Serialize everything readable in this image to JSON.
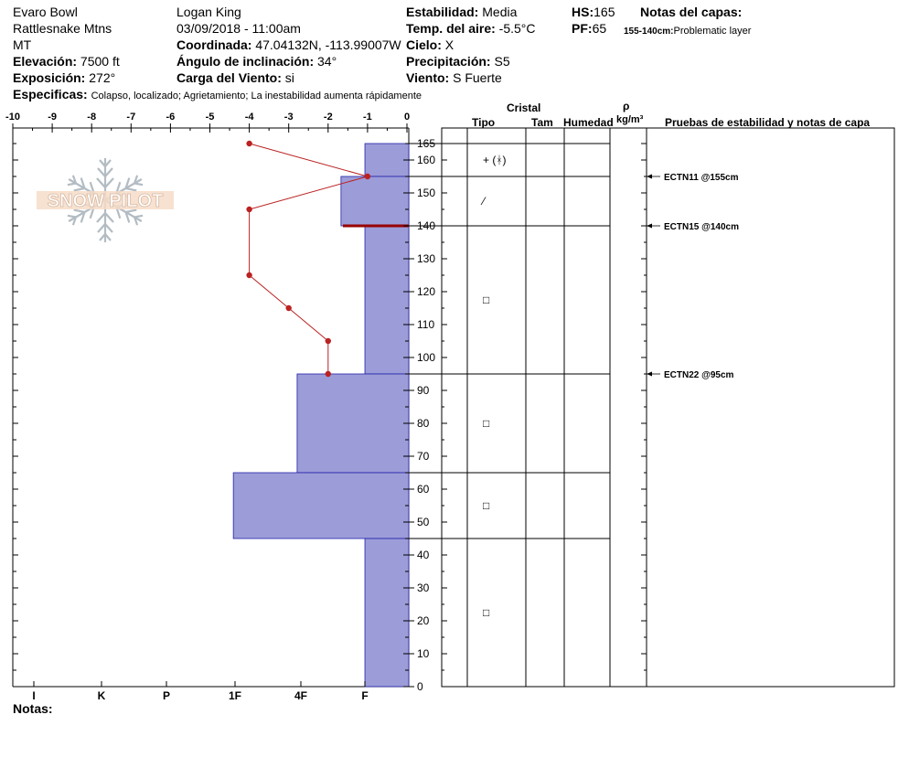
{
  "header": {
    "location": "Evaro Bowl",
    "range": "Rattlesnake Mtns",
    "state": "MT",
    "elevation_label": "Elevación:",
    "elevation_value": "7500 ft",
    "aspect_label": "Exposición:",
    "aspect_value": "272°",
    "specifics_label": "Especificas:",
    "specifics_value": "Colapso, localizado;  Agrietamiento;  La inestabilidad aumenta rápidamente",
    "observer": "Logan King",
    "datetime": "03/09/2018 - 11:00am",
    "coord_label": "Coordinada:",
    "coord_value": "47.04132N, -113.99007W",
    "slope_label": "Ángulo de inclinación:",
    "slope_value": "34°",
    "wind_loading_label": "Carga del Viento:",
    "wind_loading_value": "si",
    "stability_label": "Estabilidad:",
    "stability_value": "Media",
    "air_temp_label": "Temp. del aire:",
    "air_temp_value": "-5.5°C",
    "sky_label": "Cielo:",
    "sky_value": "X",
    "precip_label": "Precipitación:",
    "precip_value": "S5",
    "wind_label": "Viento:",
    "wind_value": "S Fuerte",
    "hs_label": "HS:",
    "hs_value": "165",
    "pf_label": "PF:",
    "pf_value": "65",
    "layer_notes_label": "Notas del capas:",
    "layer_note_range": "155-140cm:",
    "layer_note_text": "Problematic layer"
  },
  "logo": {
    "text": "SNOW PILOT"
  },
  "columns": {
    "crystal": "Cristal",
    "type": "Tipo",
    "size": "Tam",
    "moisture": "Humedad",
    "rho": "ρ",
    "density_unit": "kg/m³",
    "tests": "Pruebas de estabilidad y notas de capa"
  },
  "footer": {
    "notes_label": "Notas:"
  },
  "colors": {
    "hardness_fill": "#9c9cd8",
    "hardness_stroke": "#2222aa",
    "temperature": "#bb2222",
    "weak_layer": "#990000"
  },
  "chart_data": {
    "type": "snow_profile",
    "temperature_axis": {
      "min": -10,
      "max": 0,
      "ticks": [
        "-10",
        "-9",
        "-8",
        "-7",
        "-6",
        "-5",
        "-4",
        "-3",
        "-2",
        "-1",
        "0"
      ]
    },
    "depth_axis": {
      "min": 0,
      "max": 165,
      "ticks": [
        "0",
        "10",
        "20",
        "30",
        "40",
        "50",
        "60",
        "70",
        "80",
        "90",
        "100",
        "110",
        "120",
        "130",
        "140",
        "150",
        "160",
        "165"
      ]
    },
    "hardness_axis": [
      "I",
      "K",
      "P",
      "1F",
      "4F",
      "F"
    ],
    "temperature_profile": [
      {
        "t": -4,
        "h": 165
      },
      {
        "t": -1,
        "h": 155
      },
      {
        "t": -4,
        "h": 145
      },
      {
        "t": -4,
        "h": 125
      },
      {
        "t": -3,
        "h": 115
      },
      {
        "t": -2,
        "h": 105
      },
      {
        "t": -2,
        "h": 95
      }
    ],
    "layers": [
      {
        "top": 165,
        "bottom": 155,
        "hardness_width": 1.1,
        "crystal_symbol": "+ (ᚼ)"
      },
      {
        "top": 155,
        "bottom": 140,
        "hardness_width": 1.7,
        "crystal_symbol": "⁄"
      },
      {
        "top": 140,
        "bottom": 95,
        "hardness_width": 1.1,
        "crystal_symbol": "□"
      },
      {
        "top": 95,
        "bottom": 65,
        "hardness_width": 2.8,
        "crystal_symbol": "□"
      },
      {
        "top": 65,
        "bottom": 45,
        "hardness_width": 4.4,
        "crystal_symbol": "□"
      },
      {
        "top": 45,
        "bottom": 0,
        "hardness_width": 1.1,
        "crystal_symbol": "□"
      }
    ],
    "weak_layer": {
      "top": 140
    },
    "stability_tests": [
      {
        "label": "ECTN11 @155cm",
        "depth": 155
      },
      {
        "label": "ECTN15 @140cm",
        "depth": 140
      },
      {
        "label": "ECTN22 @95cm",
        "depth": 95
      }
    ]
  }
}
